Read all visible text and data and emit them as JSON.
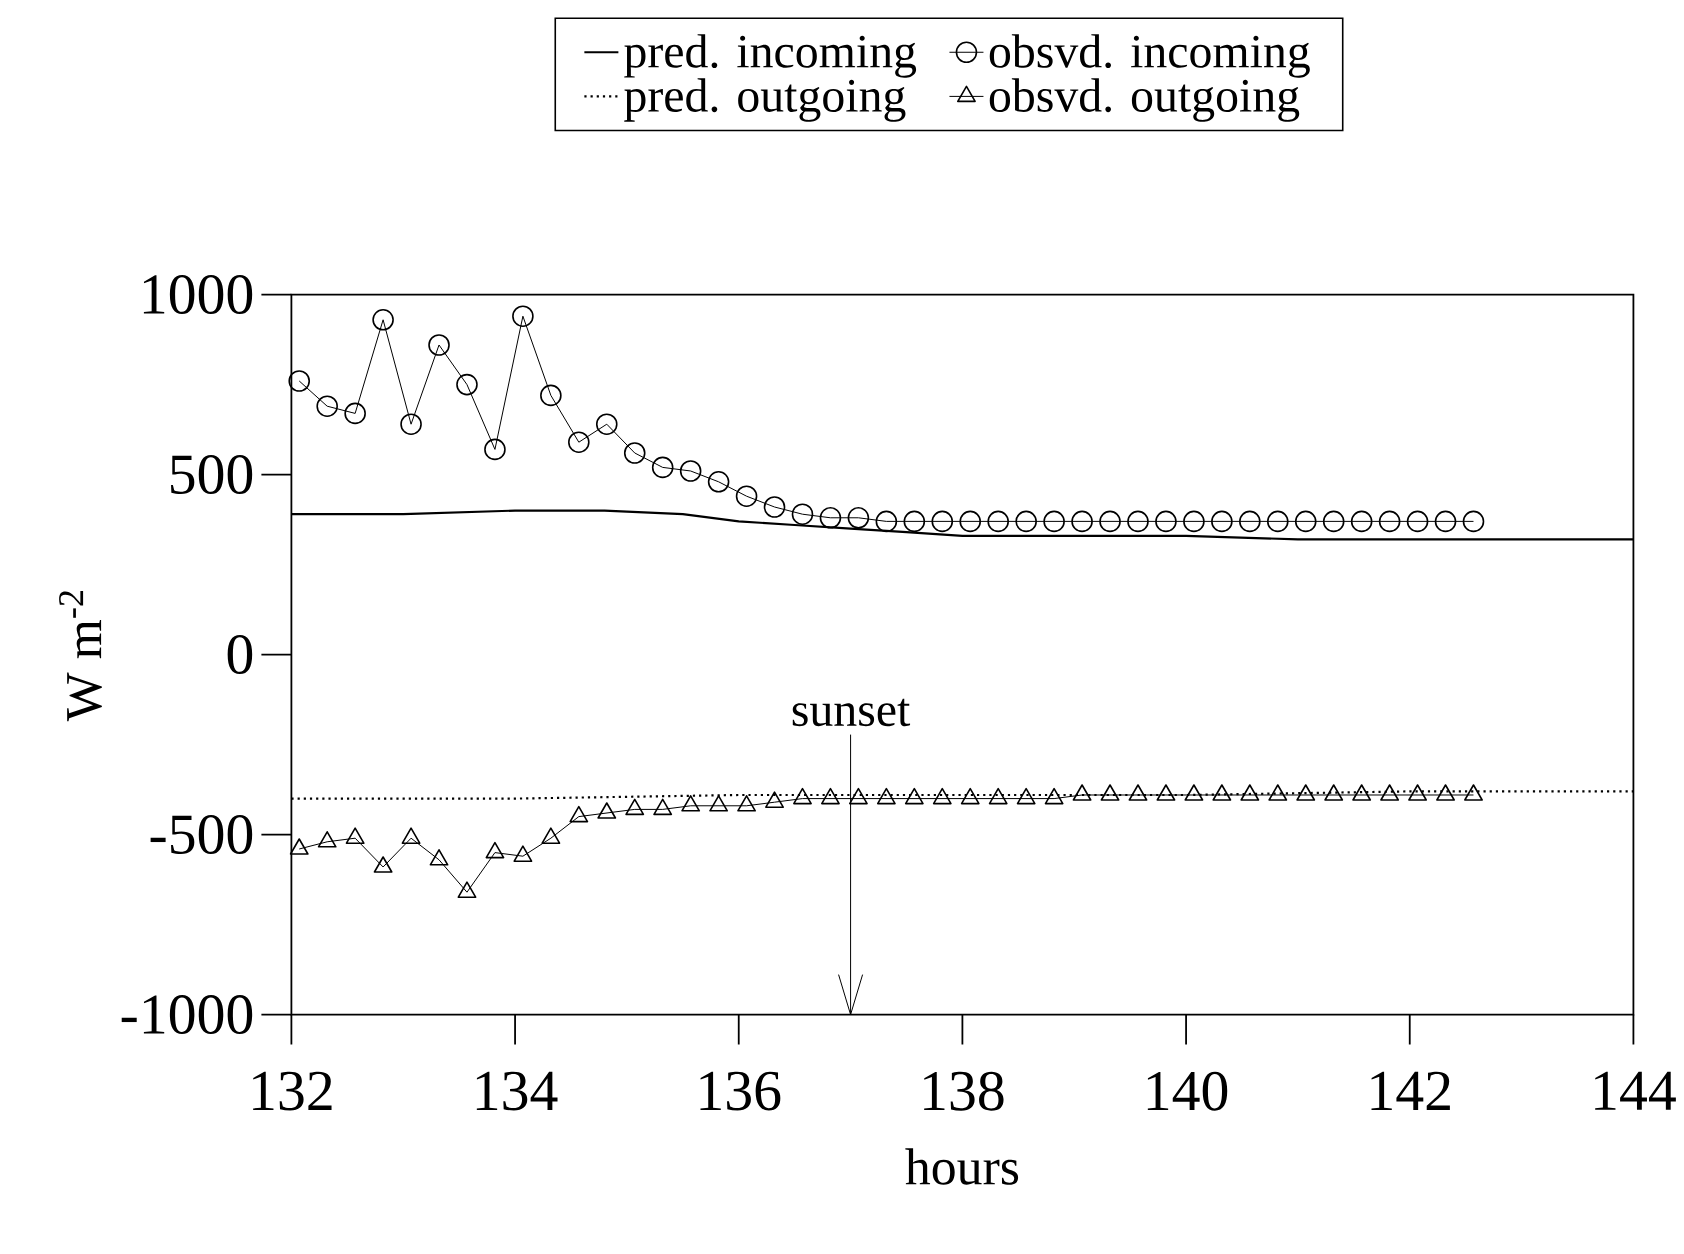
{
  "chart_data": {
    "type": "line",
    "xlabel": "hours",
    "ylabel": "W m$^{-2}$",
    "xlim": [
      132,
      144
    ],
    "ylim": [
      -1000,
      1000
    ],
    "xticks": [
      132,
      134,
      136,
      138,
      140,
      142,
      144
    ],
    "yticks": [
      -1000,
      -500,
      0,
      500,
      1000
    ],
    "legend": "top",
    "ref_lines": [
      {
        "axis": "x",
        "value": 137,
        "label": "sunset"
      }
    ],
    "series": [
      {
        "name": "pred. incoming",
        "color": "#000000",
        "line_style": "solid",
        "marker": "none",
        "x": [
          132,
          133,
          134,
          134.8,
          135.5,
          136,
          136.5,
          137,
          137.5,
          138,
          139,
          140,
          141,
          142,
          143,
          144
        ],
        "values": [
          390,
          390,
          400,
          400,
          390,
          370,
          360,
          350,
          340,
          330,
          330,
          330,
          320,
          320,
          320,
          320
        ]
      },
      {
        "name": "obsvd. incoming",
        "color": "#000000",
        "line_style": "solid",
        "marker": "circle",
        "x": [
          132.07,
          132.32,
          132.57,
          132.82,
          133.07,
          133.32,
          133.57,
          133.82,
          134.07,
          134.32,
          134.57,
          134.82,
          135.07,
          135.32,
          135.57,
          135.82,
          136.07,
          136.32,
          136.57,
          136.82,
          137.07,
          137.32,
          137.57,
          137.82,
          138.07,
          138.32,
          138.57,
          138.82,
          139.07,
          139.32,
          139.57,
          139.82,
          140.07,
          140.32,
          140.57,
          140.82,
          141.07,
          141.32,
          141.57,
          141.82,
          142.07,
          142.32,
          142.57
        ],
        "values": [
          760,
          690,
          670,
          930,
          640,
          860,
          750,
          570,
          940,
          720,
          590,
          640,
          560,
          520,
          510,
          480,
          440,
          410,
          390,
          380,
          380,
          370,
          370,
          370,
          370,
          370,
          370,
          370,
          370,
          370,
          370,
          370,
          370,
          370,
          370,
          370,
          370,
          370,
          370,
          370,
          370,
          370,
          370
        ]
      },
      {
        "name": "pred. outgoing",
        "color": "#000000",
        "line_style": "dotted",
        "marker": "none",
        "x": [
          132,
          134,
          136,
          138,
          140,
          142,
          144
        ],
        "values": [
          -400,
          -400,
          -390,
          -390,
          -390,
          -380,
          -380
        ]
      },
      {
        "name": "obsvd. outgoing",
        "color": "#000000",
        "line_style": "solid",
        "marker": "triangle",
        "x": [
          132.07,
          132.32,
          132.57,
          132.82,
          133.07,
          133.32,
          133.57,
          133.82,
          134.07,
          134.32,
          134.57,
          134.82,
          135.07,
          135.32,
          135.57,
          135.82,
          136.07,
          136.32,
          136.57,
          136.82,
          137.07,
          137.32,
          137.57,
          137.82,
          138.07,
          138.32,
          138.57,
          138.82,
          139.07,
          139.32,
          139.57,
          139.82,
          140.07,
          140.32,
          140.57,
          140.82,
          141.07,
          141.32,
          141.57,
          141.82,
          142.07,
          142.32,
          142.57
        ],
        "values": [
          -540,
          -520,
          -510,
          -590,
          -510,
          -570,
          -660,
          -550,
          -560,
          -510,
          -450,
          -440,
          -430,
          -430,
          -420,
          -420,
          -420,
          -410,
          -400,
          -400,
          -400,
          -400,
          -400,
          -400,
          -400,
          -400,
          -400,
          -400,
          -390,
          -390,
          -390,
          -390,
          -390,
          -390,
          -390,
          -390,
          -390,
          -390,
          -390,
          -390,
          -390,
          -390,
          -390
        ]
      }
    ]
  }
}
